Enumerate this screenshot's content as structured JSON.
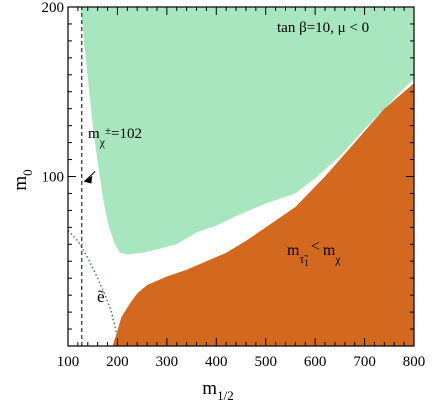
{
  "chart_data": {
    "type": "area",
    "xlabel": "m",
    "xlabel_sub": "1/2",
    "ylabel": "m",
    "ylabel_sub": "0",
    "xlim": [
      100,
      800
    ],
    "ylim": [
      0,
      200
    ],
    "x_ticks": [
      100,
      200,
      300,
      400,
      500,
      600,
      700,
      800
    ],
    "x_tick_labels": [
      "100",
      "200",
      "300",
      "400",
      "500",
      "600",
      "700",
      "800"
    ],
    "y_ticks": [
      100,
      200
    ],
    "y_tick_labels": [
      "100",
      "200"
    ],
    "annotations": {
      "parameters": "tan  β=10, μ < 0",
      "chargino_label_main": "m",
      "chargino_label_sub": "χ",
      "chargino_label_sup": "±",
      "chargino_label_value": "=102",
      "stau_label_main": "m",
      "stau_label_sub": "τ̃",
      "stau_label_subsub": "1",
      "stau_label_rel": "<",
      "stau_label_rhs": "m",
      "stau_label_rhs_sub": "χ",
      "selectron_label": "ẽ"
    },
    "regions": [
      {
        "role": "green-region",
        "color": "#a8e6c0",
        "boundary": [
          [
            112,
            200
          ],
          [
            800,
            200
          ],
          [
            800,
            158
          ],
          [
            760,
            146
          ],
          [
            700,
            128
          ],
          [
            650,
            112
          ],
          [
            600,
            99
          ],
          [
            560,
            90
          ],
          [
            500,
            84
          ],
          [
            450,
            78
          ],
          [
            400,
            71
          ],
          [
            360,
            67
          ],
          [
            320,
            60
          ],
          [
            280,
            57
          ],
          [
            250,
            55
          ],
          [
            220,
            54
          ],
          [
            205,
            55
          ],
          [
            195,
            60
          ],
          [
            183,
            70
          ],
          [
            172,
            85
          ],
          [
            162,
            105
          ],
          [
            152,
            125
          ],
          [
            143,
            150
          ],
          [
            134,
            175
          ],
          [
            126,
            200
          ]
        ]
      },
      {
        "role": "orange-region",
        "color": "#d2691e",
        "boundary": [
          [
            190,
            0
          ],
          [
            800,
            0
          ],
          [
            800,
            155
          ],
          [
            740,
            140
          ],
          [
            680,
            120
          ],
          [
            620,
            100
          ],
          [
            560,
            82
          ],
          [
            500,
            70
          ],
          [
            460,
            62
          ],
          [
            420,
            55
          ],
          [
            380,
            50
          ],
          [
            340,
            45
          ],
          [
            300,
            41
          ],
          [
            260,
            36
          ],
          [
            240,
            31
          ],
          [
            225,
            25
          ],
          [
            208,
            17
          ],
          [
            198,
            7
          ]
        ]
      }
    ],
    "lines": [
      {
        "role": "chargino-limit",
        "style": "dashed",
        "color": "#000000",
        "points": [
          [
            128,
            0
          ],
          [
            128,
            200
          ]
        ]
      },
      {
        "role": "selectron-limit",
        "style": "dotted",
        "color": "#2e8b2e",
        "points": [
          [
            100,
            68
          ],
          [
            120,
            62
          ],
          [
            140,
            52
          ],
          [
            160,
            40
          ],
          [
            175,
            30
          ],
          [
            187,
            21
          ],
          [
            198,
            8
          ]
        ]
      },
      {
        "role": "chargino-arrow",
        "style": "solid",
        "color": "#000000",
        "points": [
          [
            155,
            103
          ],
          [
            133,
            97
          ]
        ]
      }
    ]
  }
}
